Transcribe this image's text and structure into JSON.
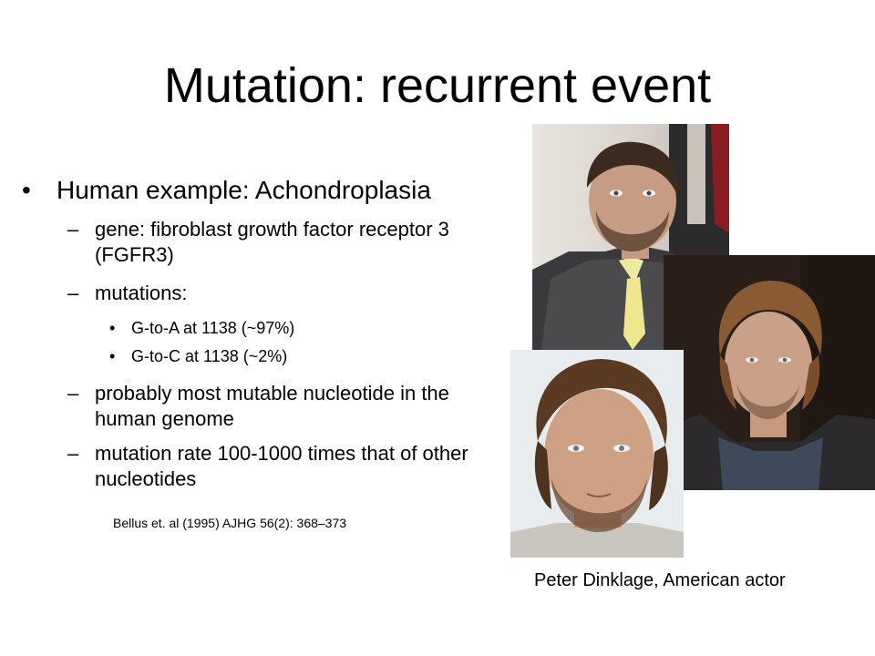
{
  "slide": {
    "title": "Mutation:  recurrent event",
    "bullets": {
      "b1": "Human example:  Achondroplasia",
      "b1_1": "gene: fibroblast growth factor receptor 3 (FGFR3)",
      "b1_2": "mutations:",
      "b1_2_1": "G-to-A at 1138 (~97%)",
      "b1_2_2": "G-to-C at 1138  (~2%)",
      "b1_3": "probably most mutable nucleotide in the human genome",
      "b1_4": "mutation rate 100-1000 times that of other nucleotides"
    },
    "markers": {
      "level1": "•",
      "level2": "–",
      "level3": "•"
    },
    "citation": "Bellus et. al (1995) AJHG 56(2): 368–373",
    "caption": "Peter Dinklage, American actor"
  }
}
